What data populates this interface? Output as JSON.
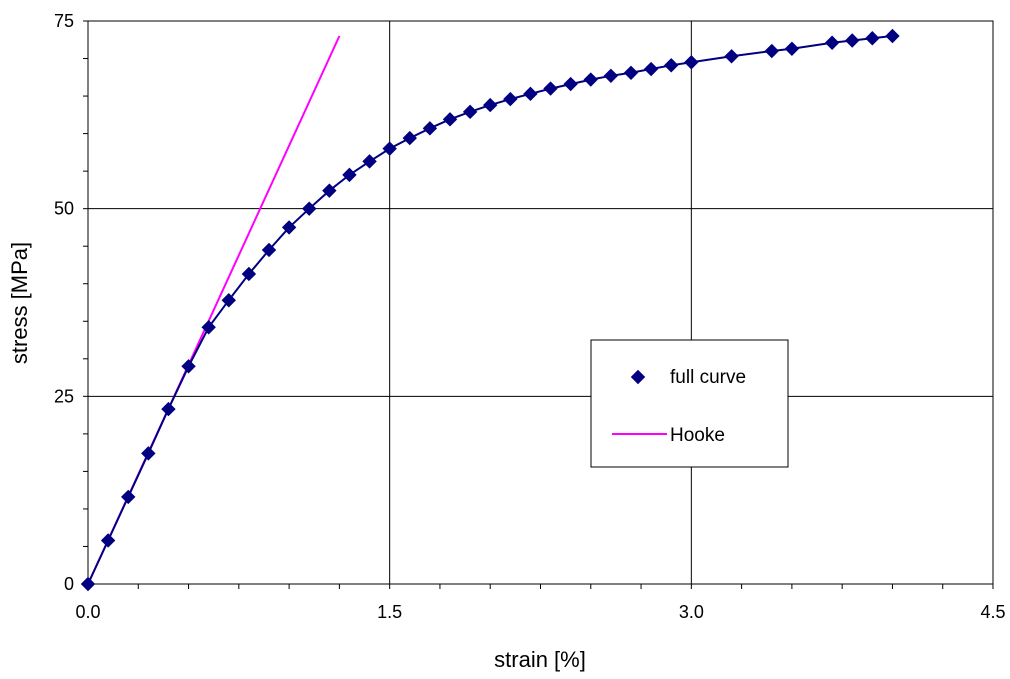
{
  "chart_data": {
    "type": "scatter",
    "xlabel": "strain [%]",
    "ylabel": "stress [MPa]",
    "xlim": [
      0,
      4.5
    ],
    "ylim": [
      0,
      75
    ],
    "x_ticks": [
      0.0,
      1.5,
      3.0,
      4.5
    ],
    "x_tick_labels": [
      "0.0",
      "1.5",
      "3.0",
      "4.5"
    ],
    "y_ticks": [
      0,
      25,
      50,
      75
    ],
    "y_tick_labels": [
      "0",
      "25",
      "50",
      "75"
    ],
    "grid": true,
    "legend_position": "center-right",
    "series": [
      {
        "name": "full curve",
        "kind": "markers-with-line",
        "marker": "diamond",
        "color": "#000080",
        "points": [
          [
            0.0,
            0.0
          ],
          [
            0.1,
            5.8
          ],
          [
            0.2,
            11.6
          ],
          [
            0.3,
            17.4
          ],
          [
            0.4,
            23.3
          ],
          [
            0.5,
            29.0
          ],
          [
            0.6,
            34.2
          ],
          [
            0.7,
            37.8
          ],
          [
            0.8,
            41.3
          ],
          [
            0.9,
            44.5
          ],
          [
            1.0,
            47.5
          ],
          [
            1.1,
            50.0
          ],
          [
            1.2,
            52.4
          ],
          [
            1.3,
            54.5
          ],
          [
            1.4,
            56.3
          ],
          [
            1.5,
            58.0
          ],
          [
            1.6,
            59.4
          ],
          [
            1.7,
            60.7
          ],
          [
            1.8,
            61.9
          ],
          [
            1.9,
            62.9
          ],
          [
            2.0,
            63.8
          ],
          [
            2.1,
            64.6
          ],
          [
            2.2,
            65.3
          ],
          [
            2.3,
            66.0
          ],
          [
            2.4,
            66.6
          ],
          [
            2.5,
            67.2
          ],
          [
            2.6,
            67.7
          ],
          [
            2.7,
            68.1
          ],
          [
            2.8,
            68.6
          ],
          [
            2.9,
            69.1
          ],
          [
            3.0,
            69.5
          ],
          [
            3.2,
            70.3
          ],
          [
            3.4,
            71.0
          ],
          [
            3.5,
            71.3
          ],
          [
            3.7,
            72.1
          ],
          [
            3.8,
            72.4
          ],
          [
            3.9,
            72.7
          ],
          [
            4.0,
            73.0
          ]
        ]
      },
      {
        "name": "Hooke",
        "kind": "line",
        "color": "#ff00ff",
        "points": [
          [
            0.0,
            0.0
          ],
          [
            1.25,
            73.0
          ]
        ]
      }
    ]
  }
}
